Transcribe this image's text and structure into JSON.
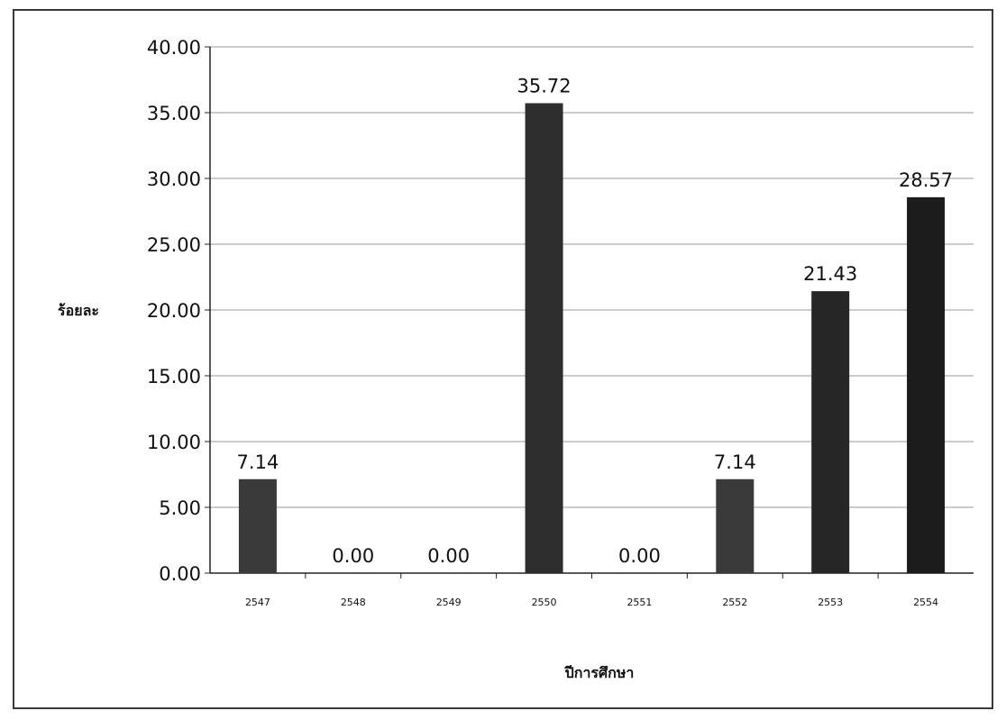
{
  "chart_data": {
    "type": "bar",
    "categories": [
      "2547",
      "2548",
      "2549",
      "2550",
      "2551",
      "2552",
      "2553",
      "2554"
    ],
    "values": [
      7.14,
      0.0,
      0.0,
      35.72,
      0.0,
      7.14,
      21.43,
      28.57
    ],
    "data_labels": [
      "7.14",
      "0.00",
      "0.00",
      "35.72",
      "0.00",
      "7.14",
      "21.43",
      "28.57"
    ],
    "y_ticks": [
      "0.00",
      "5.00",
      "10.00",
      "15.00",
      "20.00",
      "25.00",
      "30.00",
      "35.00",
      "40.00"
    ],
    "ylim": [
      0,
      40
    ],
    "xlabel": "ปีการศึกษา",
    "ylabel": "ร้อยละ",
    "grid": true,
    "bar_colors": [
      "#3a3a3a",
      "#3a3a3a",
      "#3a3a3a",
      "#2e2e2e",
      "#3a3a3a",
      "#3a3a3a",
      "#262626",
      "#1c1c1c"
    ],
    "grid_color": "#9a9a9a"
  }
}
